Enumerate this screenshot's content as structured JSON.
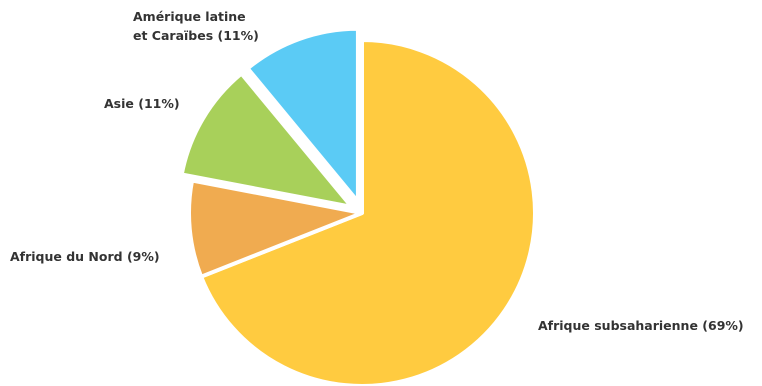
{
  "chart_data": {
    "type": "pie",
    "title": "",
    "slices": [
      {
        "name": "Afrique subsaharienne",
        "label": "Afrique subsaharienne (69%)",
        "value": 69,
        "color": "#FFCB40",
        "exploded": false
      },
      {
        "name": "Afrique du Nord",
        "label": "Afrique du Nord (9%)",
        "value": 9,
        "color": "#F0AB50",
        "exploded": false
      },
      {
        "name": "Asie",
        "label": "Asie (11%)",
        "value": 11,
        "color": "#A8D05A",
        "exploded": true
      },
      {
        "name": "Amérique latine et Caraïbes",
        "label_lines": [
          "Amérique latine",
          "et Caraïbes (11%)"
        ],
        "value": 11,
        "color": "#5BCBF5",
        "exploded": true
      }
    ],
    "legend": "none"
  }
}
